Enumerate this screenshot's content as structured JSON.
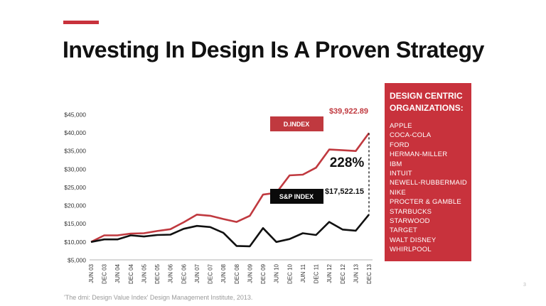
{
  "slide": {
    "title": "Investing In Design Is A Proven Strategy",
    "source": "'The dmi: Design Value Index' Design Management Institute, 2013.",
    "page_number": "3"
  },
  "panel": {
    "title": "DESIGN CENTRIC ORGANIZATIONS:",
    "items": [
      "APPLE",
      "COCA-COLA",
      "FORD",
      "HERMAN-MILLER",
      "IBM",
      "INTUIT",
      "NEWELL-RUBBERMAID",
      "NIKE",
      "PROCTER & GAMBLE",
      "STARBUCKS",
      "STARWOOD",
      "TARGET",
      "WALT DISNEY",
      "WHIRLPOOL"
    ]
  },
  "colors": {
    "accent": "#c8323c",
    "dindex_line": "#c0393f",
    "sp_line": "#111111"
  },
  "chart_data": {
    "type": "line",
    "title": "",
    "xlabel": "",
    "ylabel": "",
    "categories": [
      "JUN 03",
      "DEC 03",
      "JUN 04",
      "DEC 04",
      "JUN 05",
      "DEC 05",
      "JUN 06",
      "DEC 06",
      "JUN 07",
      "DEC 07",
      "JUN 08",
      "DEC 08",
      "JUN 09",
      "DEC 09",
      "JUN 10",
      "DEC 10",
      "JUN 11",
      "DEC 11",
      "JUN 12",
      "DEC 12",
      "JUN 13",
      "DEC 13"
    ],
    "y_ticks": [
      5000,
      10000,
      15000,
      20000,
      25000,
      30000,
      35000,
      40000,
      45000
    ],
    "y_tick_labels": [
      "$5,000",
      "$10,000",
      "$15,000",
      "$20,000",
      "$25,000",
      "$30,000",
      "$35,000",
      "$40,000",
      "$45,000"
    ],
    "ylim": [
      0,
      45000
    ],
    "grid": false,
    "series": [
      {
        "name": "D.INDEX",
        "values": [
          10000,
          11800,
          11800,
          12300,
          12400,
          13000,
          13500,
          15400,
          17500,
          17200,
          16300,
          15500,
          17200,
          23000,
          23500,
          28300,
          28500,
          30400,
          35400,
          35200,
          35000,
          39922.89
        ]
      },
      {
        "name": "S&P INDEX",
        "values": [
          10000,
          10700,
          10700,
          11800,
          11500,
          11900,
          12000,
          13600,
          14400,
          14100,
          12500,
          8900,
          8800,
          13800,
          10000,
          10800,
          12400,
          11900,
          15500,
          13400,
          13100,
          17522.15
        ]
      }
    ],
    "annotations": {
      "dindex_end": "$39,922.89",
      "sp_end": "$17,522.15",
      "difference": "228%"
    }
  }
}
